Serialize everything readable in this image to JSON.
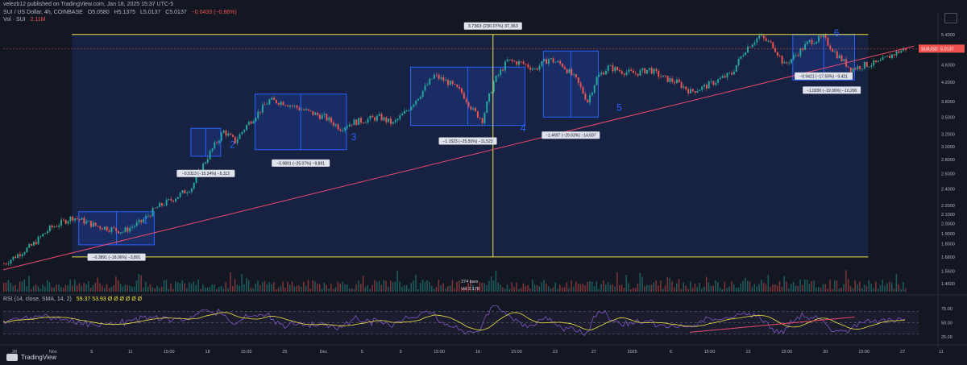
{
  "header": {
    "published_line": "velezb12 published on TradingView.com, Jan 18, 2025 15:37 UTC-5",
    "symbol_line": "SUI / US Dollar, 4h, COINBASE",
    "ohlc": {
      "o": "O5.0580",
      "h": "H5.1375",
      "l": "L5.0137",
      "c": "C5.0137",
      "chg": "−0.0433 (−0.86%)"
    },
    "volume_label": "Vol · SUI",
    "volume_value": "2.11M",
    "rsi_label": "RSI (14, close, SMA, 14, 2)",
    "rsi_values": "59.37  53.93  Ø Ø Ø Ø Ø Ø"
  },
  "brand": "TradingView",
  "colors": {
    "background": "#131722",
    "up": "#26a69a",
    "down": "#ef5350",
    "range_box": "#2962ff",
    "yellow": "#f0e442",
    "trendline": "#e84a6e",
    "rsi": "#7e57c2",
    "rsi_ma": "#f0e442"
  },
  "chart_data": {
    "type": "candlestick",
    "symbol": "SUIUSD",
    "timeframe": "4h",
    "price_axis": {
      "ticks": [
        "5.4000",
        "5.0000",
        "4.6000",
        "4.2000",
        "3.8000",
        "3.5000",
        "3.2000",
        "3.0000",
        "2.8000",
        "2.6000",
        "2.4000",
        "2.2000",
        "2.1000",
        "2.0000",
        "1.9000",
        "1.8000",
        "1.6800",
        "1.5600",
        "1.4600"
      ],
      "scale": "log",
      "ylim": [
        1.4,
        5.7
      ],
      "last_price_label": "SUIUSD",
      "last_price": "5.0137"
    },
    "time_axis": {
      "ticks": [
        "28",
        "Nov",
        "5",
        "11",
        "15:00",
        "18",
        "15:00",
        "25",
        "Dec",
        "5",
        "9",
        "15:00",
        "16",
        "15:00",
        "23",
        "27",
        "2025",
        "6",
        "15:00",
        "13",
        "15:00",
        "20",
        "15:00",
        "27",
        "11"
      ]
    },
    "price_path": [
      [
        0,
        1.62
      ],
      [
        12,
        1.78
      ],
      [
        20,
        1.95
      ],
      [
        30,
        2.07
      ],
      [
        40,
        1.98
      ],
      [
        52,
        1.92
      ],
      [
        60,
        2.02
      ],
      [
        67,
        2.18
      ],
      [
        74,
        2.28
      ],
      [
        82,
        2.42
      ],
      [
        90,
        2.9
      ],
      [
        96,
        3.25
      ],
      [
        101,
        3.08
      ],
      [
        106,
        3.35
      ],
      [
        111,
        3.58
      ],
      [
        116,
        3.82
      ],
      [
        122,
        3.78
      ],
      [
        128,
        3.68
      ],
      [
        134,
        3.58
      ],
      [
        140,
        3.5
      ],
      [
        147,
        3.3
      ],
      [
        152,
        3.4
      ],
      [
        158,
        3.45
      ],
      [
        164,
        3.5
      ],
      [
        170,
        3.38
      ],
      [
        176,
        3.62
      ],
      [
        182,
        3.95
      ],
      [
        188,
        4.35
      ],
      [
        194,
        4.2
      ],
      [
        200,
        3.98
      ],
      [
        205,
        3.62
      ],
      [
        209,
        3.45
      ],
      [
        214,
        4.2
      ],
      [
        220,
        4.7
      ],
      [
        226,
        4.65
      ],
      [
        232,
        4.5
      ],
      [
        238,
        4.75
      ],
      [
        244,
        4.6
      ],
      [
        250,
        4.25
      ],
      [
        255,
        3.8
      ],
      [
        259,
        4.3
      ],
      [
        264,
        4.55
      ],
      [
        270,
        4.45
      ],
      [
        276,
        4.4
      ],
      [
        282,
        4.5
      ],
      [
        288,
        4.3
      ],
      [
        294,
        4.2
      ],
      [
        300,
        4.0
      ],
      [
        306,
        4.1
      ],
      [
        312,
        4.25
      ],
      [
        318,
        4.4
      ],
      [
        324,
        5.0
      ],
      [
        330,
        5.35
      ],
      [
        336,
        5.1
      ],
      [
        341,
        4.6
      ],
      [
        346,
        4.85
      ],
      [
        352,
        5.2
      ],
      [
        358,
        5.3
      ],
      [
        364,
        4.85
      ],
      [
        370,
        4.5
      ],
      [
        376,
        4.6
      ],
      [
        382,
        4.65
      ],
      [
        388,
        4.85
      ],
      [
        394,
        5.02
      ]
    ],
    "volume_label": "Vol 2.178",
    "bars_label": "374 bars",
    "drawings": {
      "waves": [
        {
          "label": "1",
          "measure": "−0.3891 (−18.06%) −3,891"
        },
        {
          "label": "2",
          "measure": "−0.5113 (−15.34%) −5,113"
        },
        {
          "label": "3",
          "measure": "−0.9891 (−25.07%) −9,891"
        },
        {
          "label": "4",
          "measure": "−1.1523 (−25.55%) −11,523"
        },
        {
          "label": "5",
          "measure": "−1.4697 (−29.63%) −14,697"
        },
        {
          "label": "6",
          "measure": "−0.9421 (−17.59%) −9,421"
        }
      ],
      "extra_measure": "−1.0200 (−19.36%) −10,200",
      "total_measure": "3.7363 (230.07%) 37,363",
      "support_level": 1.68,
      "resistance_level": 5.4
    },
    "rsi": {
      "ticks": [
        "75.00",
        "50.00",
        "25.00"
      ],
      "ylim": [
        15,
        85
      ]
    }
  }
}
